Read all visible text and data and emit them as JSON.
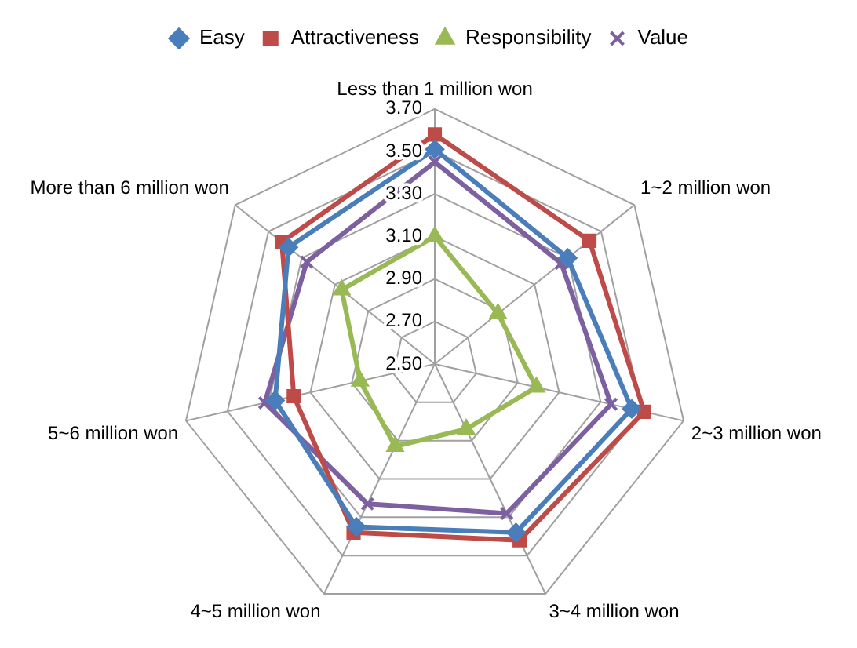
{
  "chart_data": {
    "type": "radar",
    "categories": [
      "Less than 1 million won",
      "1~2 million won",
      "2~3 million won",
      "3~4 million won",
      "4~5 million won",
      "5~6 million won",
      "More than 6 million won"
    ],
    "series": [
      {
        "name": "Easy",
        "color": "#4a7ebb",
        "marker": "diamond",
        "values": [
          3.51,
          3.3,
          3.45,
          3.38,
          3.35,
          3.27,
          3.38
        ]
      },
      {
        "name": "Attractiveness",
        "color": "#be4b48",
        "marker": "square",
        "values": [
          3.58,
          3.43,
          3.51,
          3.42,
          3.38,
          3.18,
          3.42
        ]
      },
      {
        "name": "Responsibility",
        "color": "#98b954",
        "marker": "triangle",
        "values": [
          3.1,
          2.88,
          2.99,
          2.84,
          2.93,
          2.86,
          3.06
        ]
      },
      {
        "name": "Value",
        "color": "#7d60a0",
        "marker": "cross",
        "values": [
          3.45,
          3.26,
          3.35,
          3.28,
          3.23,
          3.32,
          3.27
        ]
      }
    ],
    "ylim": [
      2.5,
      3.7
    ],
    "yticks": [
      {
        "value": 2.5,
        "label": "2.50"
      },
      {
        "value": 2.7,
        "label": "2.70"
      },
      {
        "value": 2.9,
        "label": "2.90"
      },
      {
        "value": 3.1,
        "label": "3.10"
      },
      {
        "value": 3.3,
        "label": "3.30"
      },
      {
        "value": 3.5,
        "label": "3.50"
      },
      {
        "value": 3.7,
        "label": "3.70"
      }
    ],
    "grid": true,
    "legend": "top"
  }
}
